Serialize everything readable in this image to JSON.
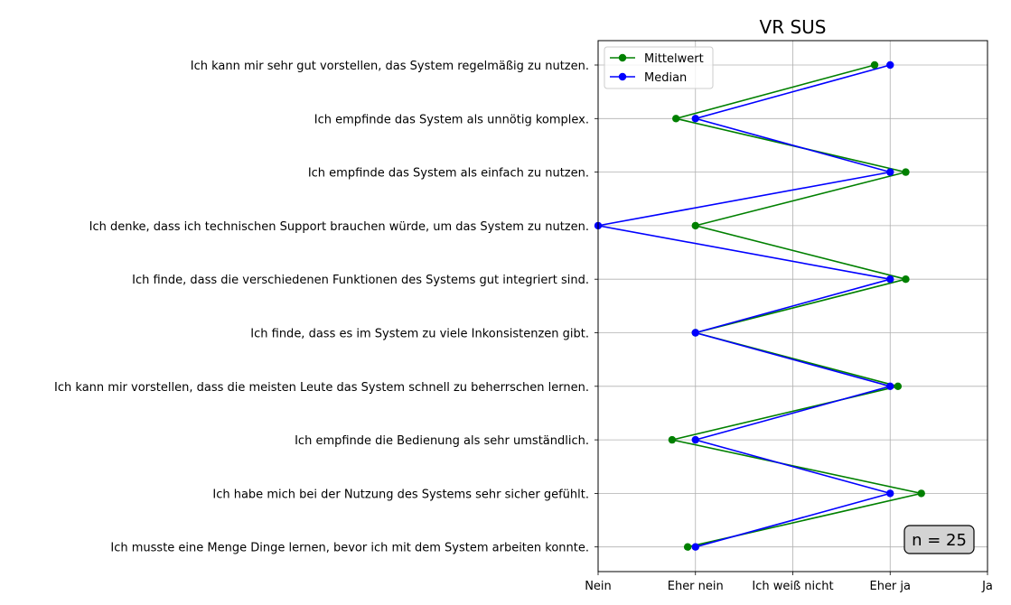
{
  "chart_data": {
    "type": "line",
    "title": "VR SUS",
    "x_ticks": [
      "Nein",
      "Eher nein",
      "Ich weiß nicht",
      "Eher ja",
      "Ja"
    ],
    "xlim": [
      1,
      5
    ],
    "grid": true,
    "legend_position": "top-left",
    "categories": [
      "Ich kann mir sehr gut vorstellen, das System regelmäßig zu nutzen.",
      "Ich empfinde das System als unnötig komplex.",
      "Ich empfinde das System als einfach zu nutzen.",
      "Ich denke, dass ich technischen Support brauchen würde, um das System zu nutzen.",
      "Ich finde, dass die verschiedenen Funktionen des Systems gut integriert sind.",
      "Ich finde, dass es im System zu viele Inkonsistenzen gibt.",
      "Ich kann mir vorstellen, dass die meisten Leute das System schnell zu beherrschen lernen.",
      "Ich empfinde die Bedienung als sehr umständlich.",
      "Ich habe mich bei der Nutzung des Systems sehr sicher gefühlt.",
      "Ich musste eine Menge Dinge lernen, bevor ich mit dem System arbeiten konnte."
    ],
    "series": [
      {
        "name": "Mittelwert",
        "color": "#008000",
        "values": [
          3.84,
          1.8,
          4.16,
          2.0,
          4.16,
          2.0,
          4.08,
          1.76,
          4.32,
          1.92
        ]
      },
      {
        "name": "Median",
        "color": "#0000ff",
        "values": [
          4,
          2,
          4,
          1,
          4,
          2,
          4,
          2,
          4,
          2
        ]
      }
    ],
    "annotation": "n = 25"
  }
}
